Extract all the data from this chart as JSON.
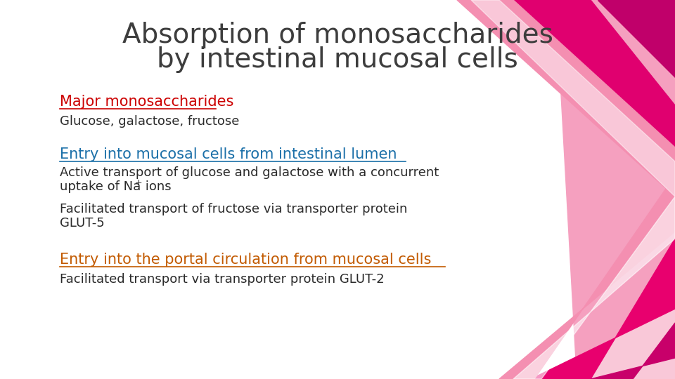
{
  "title_line1": "Absorption of monosaccharides",
  "title_line2": "by intestinal mucosal cells",
  "title_color": "#3d3d3d",
  "title_fontsize": 28,
  "bg_color": "#ffffff",
  "heading1": "Major monosaccharides",
  "heading1_color": "#cc0000",
  "heading2": "Entry into mucosal cells from intestinal lumen",
  "heading2_color": "#1a6fa8",
  "heading3": "Entry into the portal circulation from mucosal cells",
  "heading3_color": "#c25a00",
  "body_color": "#2a2a2a",
  "body_fontsize": 13,
  "heading_fontsize": 15,
  "text1": "Glucose, galactose, fructose",
  "text2a": "Active transport of glucose and galactose with a concurrent",
  "text2b": "uptake of Na",
  "text2b_sup": "+",
  "text2b_end": " ions",
  "text2c": "Facilitated transport of fructose via transporter protein",
  "text2d": "GLUT-5",
  "text3": "Facilitated transport via transporter protein GLUT-2"
}
